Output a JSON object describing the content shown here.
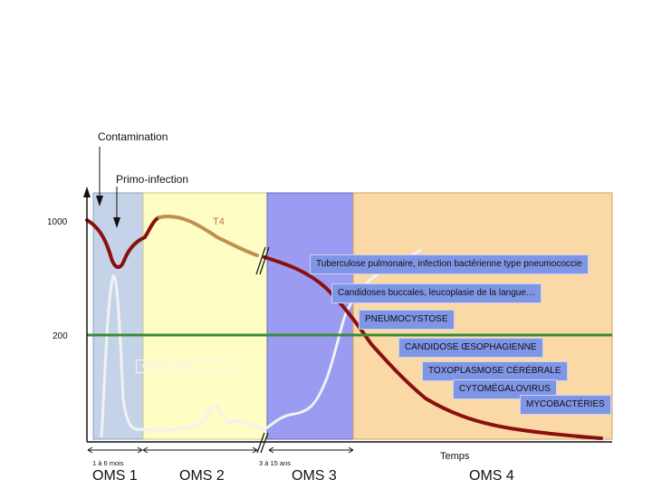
{
  "chart_data": {
    "type": "line",
    "title": "",
    "y_ticks": [
      "1000",
      "200"
    ],
    "x_axis_label": "Temps",
    "period_labels": [
      "1 à 6 mois",
      "3 à 15 ans"
    ],
    "stages": [
      "OMS 1",
      "OMS 2",
      "OMS 3",
      "OMS 4"
    ],
    "stage_colors": [
      "#c5d3e8",
      "#fdfdc4",
      "#9b9bf2",
      "#fbd9a7"
    ],
    "series": [
      {
        "name": "T4",
        "color": "#8b0f0f"
      },
      {
        "name": "",
        "color": "#d9d9d9"
      }
    ],
    "threshold": {
      "value": 200,
      "color": "#3a8a3a"
    }
  },
  "annotations": {
    "contamination": "Contamination",
    "primo": "Primo-infection",
    "t4": "T4",
    "viral_load": "charge virale"
  },
  "infections": [
    "Tuberculose pulmonaire, infection bactérienne type pneumococcie",
    "Candidoses buccales, leucoplasie de la langue…",
    "PNEUMOCYSTOSE",
    "CANDIDOSE ŒSOPHAGIENNE",
    "TOXOPLASMOSE CÉRÉBRALE",
    "CYTOMÉGALOVIRUS",
    "MYCOBACTÉRIES"
  ]
}
